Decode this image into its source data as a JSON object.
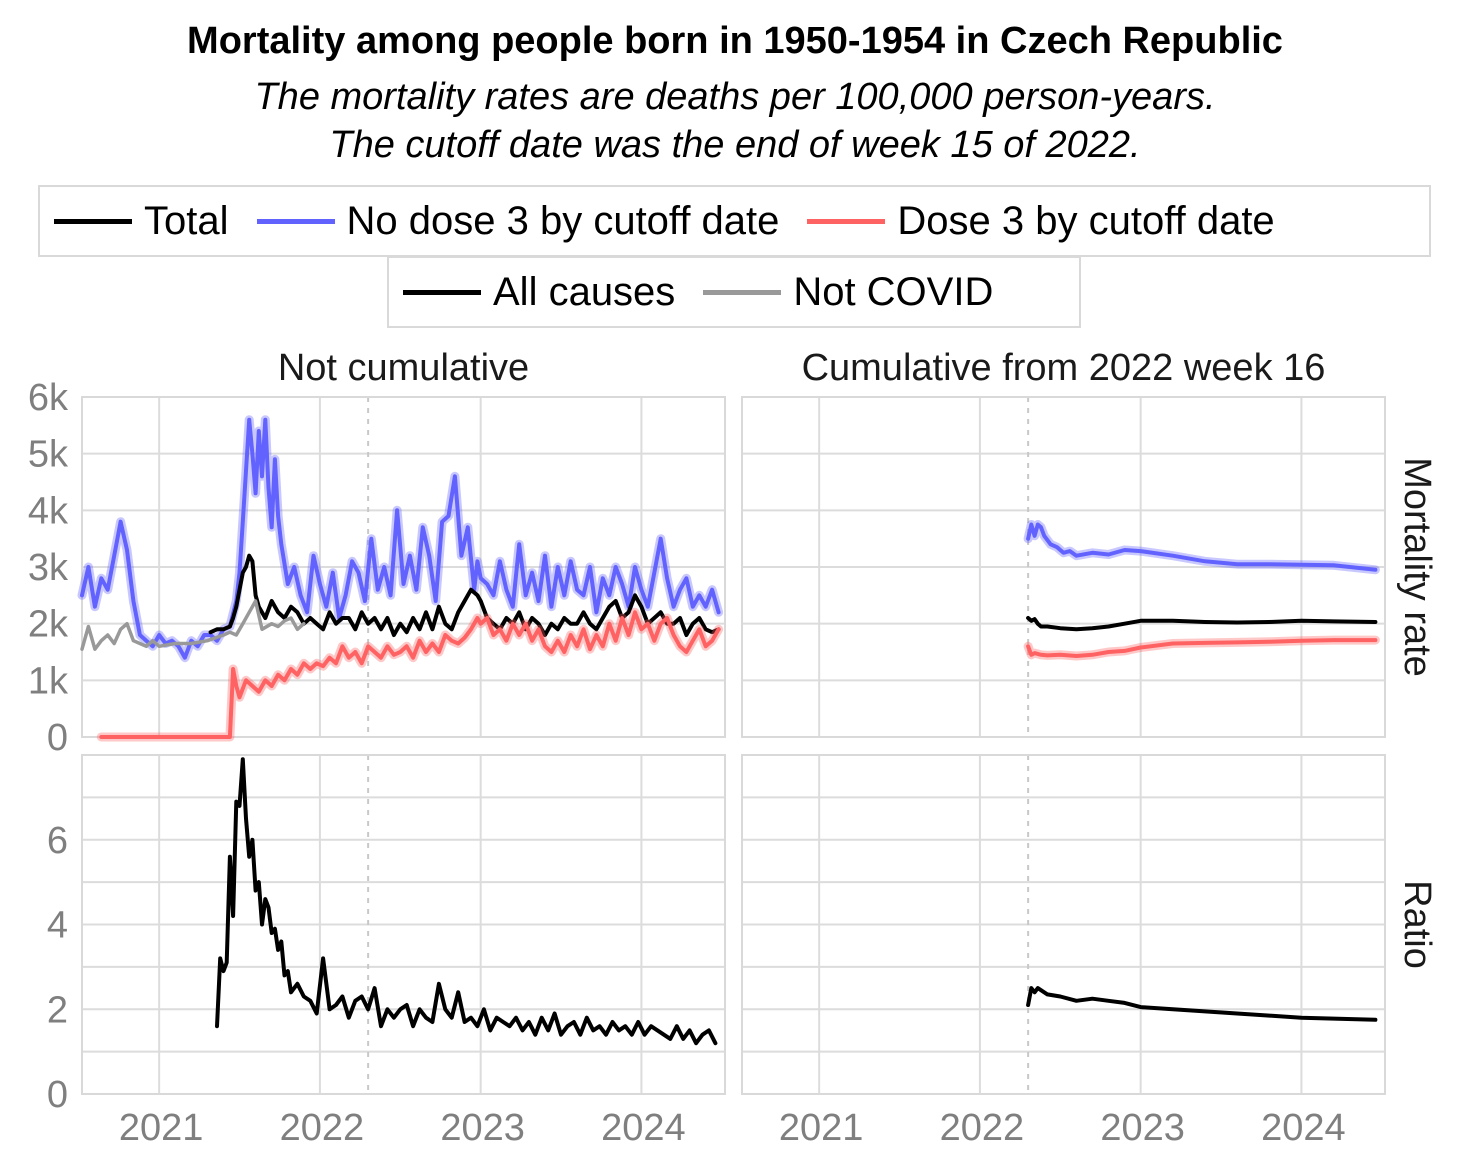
{
  "chart_data": {
    "type": "line",
    "title": "Mortality among people born in 1950-1954 in Czech Republic",
    "subtitle_lines": [
      "The mortality rates are deaths per 100,000 person-years.",
      "The cutoff date was the end of week 15 of 2022."
    ],
    "legend_groups": [
      "Total",
      "No dose 3 by cutoff date",
      "Dose 3 by cutoff date"
    ],
    "legend_types": [
      "All causes",
      "Not COVID"
    ],
    "colors": {
      "Total": "#000000",
      "No dose 3 by cutoff date": "#6262ff",
      "Dose 3 by cutoff date": "#ff6262",
      "Not COVID": "#999999"
    },
    "facet_columns": [
      "Not cumulative",
      "Cumulative from 2022 week 16"
    ],
    "facet_rows": [
      "Mortality rate",
      "Ratio"
    ],
    "x_ticks": [
      2021,
      2022,
      2023,
      2024
    ],
    "x_tick_labels": [
      "2021",
      "2022",
      "2023",
      "2024"
    ],
    "xlim": [
      2020.52,
      2024.52
    ],
    "cutoff_x": 2022.3,
    "rate_ylim": [
      0,
      6000
    ],
    "rate_ticks": [
      0,
      1000,
      2000,
      3000,
      4000,
      5000,
      6000
    ],
    "rate_tick_labels": [
      "0",
      "1k",
      "2k",
      "3k",
      "4k",
      "5k",
      "6k"
    ],
    "ratio_ylim": [
      0,
      8
    ],
    "ratio_ticks": [
      0,
      2,
      4,
      6
    ],
    "ratio_tick_labels": [
      "0",
      "2",
      "4",
      "6"
    ],
    "series": [
      {
        "panel": "Not cumulative / Mortality rate",
        "group": "No dose 3 by cutoff date",
        "cause": "All causes",
        "x": [
          2020.52,
          2020.56,
          2020.6,
          2020.64,
          2020.68,
          2020.72,
          2020.76,
          2020.8,
          2020.84,
          2020.88,
          2020.92,
          2020.96,
          2021.0,
          2021.04,
          2021.08,
          2021.12,
          2021.16,
          2021.2,
          2021.24,
          2021.28,
          2021.32,
          2021.36,
          2021.4,
          2021.44,
          2021.48,
          2021.5,
          2021.52,
          2021.54,
          2021.56,
          2021.58,
          2021.6,
          2021.62,
          2021.64,
          2021.66,
          2021.68,
          2021.7,
          2021.72,
          2021.74,
          2021.76,
          2021.8,
          2021.84,
          2021.88,
          2021.92,
          2021.96,
          2022.0,
          2022.04,
          2022.08,
          2022.12,
          2022.16,
          2022.2,
          2022.24,
          2022.28,
          2022.32,
          2022.36,
          2022.4,
          2022.44,
          2022.48,
          2022.52,
          2022.56,
          2022.6,
          2022.64,
          2022.68,
          2022.72,
          2022.76,
          2022.8,
          2022.84,
          2022.88,
          2022.92,
          2022.96,
          2022.98,
          2023.0,
          2023.04,
          2023.08,
          2023.12,
          2023.16,
          2023.2,
          2023.24,
          2023.28,
          2023.32,
          2023.36,
          2023.4,
          2023.44,
          2023.48,
          2023.52,
          2023.56,
          2023.6,
          2023.64,
          2023.68,
          2023.72,
          2023.76,
          2023.8,
          2023.84,
          2023.88,
          2023.92,
          2023.96,
          2024.0,
          2024.04,
          2024.08,
          2024.12,
          2024.16,
          2024.2,
          2024.24,
          2024.28,
          2024.32,
          2024.36,
          2024.4,
          2024.44,
          2024.48
        ],
        "y": [
          2500,
          3000,
          2300,
          2800,
          2600,
          3200,
          3800,
          3300,
          2400,
          1800,
          1700,
          1600,
          1800,
          1650,
          1700,
          1600,
          1400,
          1700,
          1600,
          1800,
          1800,
          1700,
          1900,
          1950,
          2400,
          2900,
          3800,
          4700,
          5600,
          5000,
          4300,
          5400,
          4600,
          5600,
          4400,
          3700,
          4900,
          3900,
          3400,
          2700,
          3000,
          2500,
          2200,
          3200,
          2700,
          2300,
          2900,
          2100,
          2500,
          3100,
          2900,
          2400,
          3500,
          2600,
          3000,
          2500,
          4000,
          2700,
          3200,
          2600,
          3700,
          3200,
          2400,
          3800,
          3900,
          4600,
          3200,
          3700,
          2600,
          3100,
          2800,
          2700,
          2500,
          3100,
          2600,
          2300,
          3400,
          2500,
          2900,
          2400,
          3200,
          2300,
          3000,
          2500,
          3100,
          2600,
          2500,
          3000,
          2200,
          2800,
          2500,
          3000,
          2700,
          2300,
          3000,
          2600,
          2300,
          2900,
          3500,
          2800,
          2300,
          2600,
          2800,
          2300,
          2500,
          2300,
          2600,
          2200
        ]
      },
      {
        "panel": "Not cumulative / Mortality rate",
        "group": "Total",
        "cause": "All causes",
        "x": [
          2021.32,
          2021.36,
          2021.4,
          2021.44,
          2021.46,
          2021.48,
          2021.5,
          2021.52,
          2021.54,
          2021.56,
          2021.58,
          2021.6,
          2021.62,
          2021.66,
          2021.7,
          2021.74,
          2021.78,
          2021.82,
          2021.86,
          2021.9,
          2021.94,
          2021.98,
          2022.02,
          2022.06,
          2022.1,
          2022.14,
          2022.18,
          2022.22,
          2022.26,
          2022.3,
          2022.34,
          2022.38,
          2022.42,
          2022.46,
          2022.5,
          2022.54,
          2022.58,
          2022.62,
          2022.66,
          2022.7,
          2022.74,
          2022.78,
          2022.82,
          2022.86,
          2022.9,
          2022.94,
          2022.98,
          2023.0,
          2023.04,
          2023.08,
          2023.12,
          2023.16,
          2023.2,
          2023.24,
          2023.28,
          2023.32,
          2023.36,
          2023.4,
          2023.44,
          2023.48,
          2023.52,
          2023.56,
          2023.6,
          2023.64,
          2023.68,
          2023.72,
          2023.76,
          2023.8,
          2023.84,
          2023.88,
          2023.92,
          2023.96,
          2024.0,
          2024.04,
          2024.08,
          2024.12,
          2024.16,
          2024.2,
          2024.24,
          2024.28,
          2024.32,
          2024.36,
          2024.4,
          2024.44,
          2024.48
        ],
        "y": [
          1850,
          1900,
          1900,
          1950,
          2100,
          2300,
          2600,
          2900,
          3000,
          3200,
          3100,
          2500,
          2300,
          2100,
          2400,
          2200,
          2100,
          2300,
          2200,
          2000,
          2100,
          2000,
          1900,
          2200,
          2000,
          2100,
          2100,
          1900,
          2200,
          2000,
          2100,
          1900,
          2100,
          1800,
          2000,
          1850,
          2100,
          1900,
          2200,
          1900,
          2300,
          2000,
          1900,
          2200,
          2400,
          2600,
          2500,
          2400,
          2100,
          2000,
          1900,
          2100,
          2000,
          2200,
          1900,
          2100,
          2000,
          1800,
          2000,
          1900,
          2100,
          2000,
          2000,
          2200,
          2000,
          1900,
          2100,
          2300,
          2400,
          2100,
          2200,
          2500,
          2300,
          2000,
          2100,
          2200,
          2000,
          2000,
          2100,
          1800,
          2000,
          2100,
          1900,
          1850,
          1900
        ]
      },
      {
        "panel": "Not cumulative / Mortality rate",
        "group": "Dose 3 by cutoff date",
        "cause": "All causes",
        "x": [
          2020.64,
          2020.8,
          2021.0,
          2021.2,
          2021.36,
          2021.44,
          2021.46,
          2021.48,
          2021.5,
          2021.54,
          2021.58,
          2021.62,
          2021.66,
          2021.7,
          2021.74,
          2021.78,
          2021.82,
          2021.86,
          2021.9,
          2021.94,
          2021.98,
          2022.02,
          2022.06,
          2022.1,
          2022.14,
          2022.18,
          2022.22,
          2022.26,
          2022.3,
          2022.34,
          2022.38,
          2022.42,
          2022.46,
          2022.5,
          2022.54,
          2022.58,
          2022.62,
          2022.66,
          2022.7,
          2022.74,
          2022.78,
          2022.82,
          2022.86,
          2022.9,
          2022.94,
          2022.98,
          2023.0,
          2023.04,
          2023.08,
          2023.12,
          2023.16,
          2023.2,
          2023.24,
          2023.28,
          2023.32,
          2023.36,
          2023.4,
          2023.44,
          2023.48,
          2023.52,
          2023.56,
          2023.6,
          2023.64,
          2023.68,
          2023.72,
          2023.76,
          2023.8,
          2023.84,
          2023.88,
          2023.92,
          2023.96,
          2024.0,
          2024.04,
          2024.08,
          2024.12,
          2024.16,
          2024.2,
          2024.24,
          2024.28,
          2024.32,
          2024.36,
          2024.4,
          2024.44,
          2024.48
        ],
        "y": [
          0,
          0,
          0,
          0,
          0,
          0,
          1200,
          900,
          700,
          1000,
          900,
          800,
          1000,
          900,
          1100,
          1000,
          1200,
          1100,
          1300,
          1200,
          1300,
          1250,
          1400,
          1300,
          1600,
          1400,
          1500,
          1300,
          1600,
          1500,
          1400,
          1600,
          1450,
          1500,
          1600,
          1400,
          1700,
          1500,
          1650,
          1500,
          1800,
          1700,
          1650,
          1750,
          1900,
          2100,
          2000,
          2100,
          1800,
          1900,
          1700,
          2000,
          1800,
          2000,
          1700,
          1900,
          1600,
          1500,
          1700,
          1500,
          1800,
          1600,
          1900,
          1550,
          1800,
          1600,
          2000,
          1700,
          2100,
          1800,
          2200,
          1900,
          2000,
          1700,
          2000,
          2100,
          1800,
          1600,
          1500,
          1700,
          1900,
          1600,
          1700,
          1900
        ]
      },
      {
        "panel": "Not cumulative / Mortality rate",
        "group": "Total",
        "cause": "Not COVID",
        "x": [
          2020.52,
          2020.56,
          2020.6,
          2020.64,
          2020.68,
          2020.72,
          2020.76,
          2020.8,
          2020.84,
          2020.88,
          2020.92,
          2020.96,
          2021.0,
          2021.1,
          2021.2,
          2021.3,
          2021.4,
          2021.44,
          2021.48,
          2021.52,
          2021.56,
          2021.6,
          2021.64,
          2021.7,
          2021.74,
          2021.78,
          2021.82,
          2021.86,
          2021.9
        ],
        "y": [
          1550,
          1950,
          1550,
          1700,
          1800,
          1650,
          1900,
          2000,
          1700,
          1650,
          1600,
          1700,
          1600,
          1650,
          1650,
          1700,
          1800,
          1850,
          1800,
          2000,
          2200,
          2400,
          1900,
          2000,
          1950,
          2050,
          2100,
          1900,
          2000
        ]
      },
      {
        "panel": "Cumulative / Mortality rate",
        "group": "No dose 3 by cutoff date",
        "cause": "All causes",
        "x": [
          2022.3,
          2022.32,
          2022.34,
          2022.36,
          2022.38,
          2022.4,
          2022.44,
          2022.48,
          2022.52,
          2022.56,
          2022.6,
          2022.7,
          2022.8,
          2022.9,
          2023.0,
          2023.2,
          2023.4,
          2023.6,
          2023.8,
          2024.0,
          2024.2,
          2024.46
        ],
        "y": [
          3500,
          3750,
          3550,
          3750,
          3700,
          3550,
          3400,
          3350,
          3250,
          3280,
          3200,
          3250,
          3220,
          3300,
          3280,
          3200,
          3100,
          3050,
          3050,
          3040,
          3030,
          2950
        ]
      },
      {
        "panel": "Cumulative / Mortality rate",
        "group": "Total",
        "cause": "All causes",
        "x": [
          2022.3,
          2022.32,
          2022.34,
          2022.36,
          2022.38,
          2022.42,
          2022.5,
          2022.6,
          2022.7,
          2022.8,
          2022.9,
          2023.0,
          2023.2,
          2023.4,
          2023.6,
          2023.8,
          2024.0,
          2024.2,
          2024.46
        ],
        "y": [
          2100,
          2050,
          2080,
          2000,
          1950,
          1950,
          1920,
          1900,
          1920,
          1950,
          2000,
          2050,
          2050,
          2030,
          2020,
          2030,
          2050,
          2040,
          2030
        ]
      },
      {
        "panel": "Cumulative / Mortality rate",
        "group": "Dose 3 by cutoff date",
        "cause": "All causes",
        "x": [
          2022.3,
          2022.32,
          2022.34,
          2022.38,
          2022.42,
          2022.5,
          2022.6,
          2022.7,
          2022.8,
          2022.9,
          2023.0,
          2023.2,
          2023.4,
          2023.6,
          2023.8,
          2024.0,
          2024.2,
          2024.46
        ],
        "y": [
          1600,
          1450,
          1480,
          1450,
          1440,
          1450,
          1430,
          1450,
          1500,
          1520,
          1580,
          1650,
          1660,
          1670,
          1680,
          1700,
          1710,
          1710
        ]
      },
      {
        "panel": "Not cumulative / Ratio",
        "group": "Total",
        "cause": "All causes",
        "x": [
          2021.36,
          2021.38,
          2021.4,
          2021.42,
          2021.44,
          2021.46,
          2021.48,
          2021.5,
          2021.52,
          2021.54,
          2021.56,
          2021.58,
          2021.6,
          2021.62,
          2021.64,
          2021.66,
          2021.68,
          2021.7,
          2021.72,
          2021.74,
          2021.76,
          2021.78,
          2021.8,
          2021.82,
          2021.86,
          2021.9,
          2021.94,
          2021.98,
          2022.02,
          2022.06,
          2022.1,
          2022.14,
          2022.18,
          2022.22,
          2022.26,
          2022.3,
          2022.34,
          2022.38,
          2022.42,
          2022.46,
          2022.5,
          2022.54,
          2022.58,
          2022.62,
          2022.66,
          2022.7,
          2022.74,
          2022.78,
          2022.82,
          2022.86,
          2022.9,
          2022.94,
          2022.98,
          2023.02,
          2023.06,
          2023.1,
          2023.14,
          2023.18,
          2023.22,
          2023.26,
          2023.3,
          2023.34,
          2023.38,
          2023.42,
          2023.46,
          2023.5,
          2023.54,
          2023.58,
          2023.62,
          2023.66,
          2023.7,
          2023.74,
          2023.78,
          2023.82,
          2023.86,
          2023.9,
          2023.94,
          2023.98,
          2024.02,
          2024.06,
          2024.1,
          2024.14,
          2024.18,
          2024.22,
          2024.26,
          2024.3,
          2024.34,
          2024.38,
          2024.42,
          2024.46
        ],
        "y": [
          1.6,
          3.2,
          2.9,
          3.1,
          5.6,
          4.2,
          6.9,
          6.8,
          7.9,
          6.5,
          5.6,
          6.0,
          4.8,
          5.0,
          4.0,
          4.6,
          4.4,
          3.8,
          3.9,
          3.4,
          3.6,
          2.8,
          2.9,
          2.4,
          2.6,
          2.3,
          2.2,
          1.9,
          3.2,
          2.0,
          2.1,
          2.3,
          1.8,
          2.2,
          2.3,
          2.0,
          2.5,
          1.6,
          2.0,
          1.8,
          2.0,
          2.1,
          1.6,
          2.0,
          1.8,
          1.7,
          2.6,
          2.0,
          1.8,
          2.4,
          1.7,
          1.8,
          1.6,
          2.0,
          1.5,
          1.8,
          1.7,
          1.6,
          1.8,
          1.5,
          1.7,
          1.4,
          1.8,
          1.5,
          1.9,
          1.4,
          1.6,
          1.7,
          1.4,
          1.8,
          1.5,
          1.6,
          1.4,
          1.7,
          1.5,
          1.6,
          1.4,
          1.7,
          1.4,
          1.6,
          1.5,
          1.4,
          1.3,
          1.6,
          1.3,
          1.5,
          1.2,
          1.4,
          1.5,
          1.2
        ]
      },
      {
        "panel": "Cumulative / Ratio",
        "group": "Total",
        "cause": "All causes",
        "x": [
          2022.3,
          2022.32,
          2022.34,
          2022.36,
          2022.38,
          2022.42,
          2022.5,
          2022.6,
          2022.7,
          2022.8,
          2022.9,
          2023.0,
          2023.2,
          2023.4,
          2023.6,
          2023.8,
          2024.0,
          2024.2,
          2024.46
        ],
        "y": [
          2.1,
          2.5,
          2.4,
          2.5,
          2.45,
          2.35,
          2.3,
          2.2,
          2.25,
          2.2,
          2.15,
          2.05,
          2.0,
          1.95,
          1.9,
          1.85,
          1.8,
          1.78,
          1.75
        ]
      }
    ]
  }
}
